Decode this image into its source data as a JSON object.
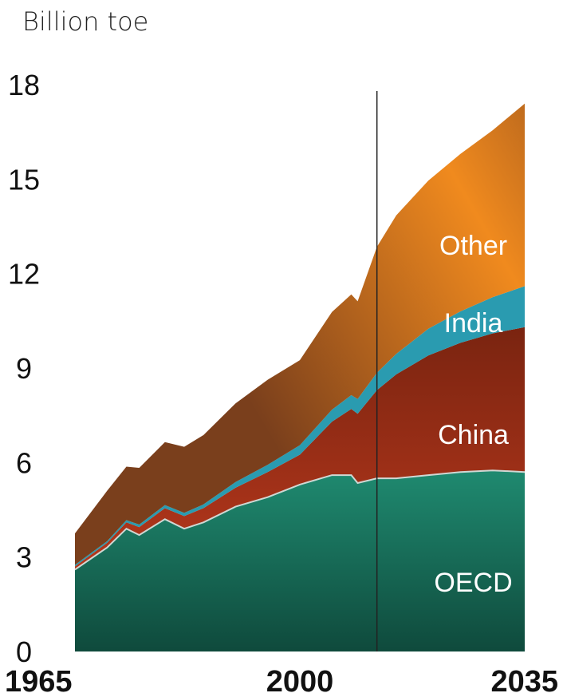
{
  "chart_data": {
    "type": "area",
    "stacked": true,
    "unit_label": "Billion toe",
    "x_ticks": [
      1965,
      2000,
      2035
    ],
    "y_ticks": [
      0,
      3,
      6,
      9,
      12,
      15,
      18
    ],
    "xlim": [
      1965,
      2035
    ],
    "ylim": [
      0,
      18
    ],
    "projection_start": 2012,
    "grid": false,
    "legend": "inline labels",
    "colors": {
      "OECD": "#1f8a70",
      "OECD_dark": "#0f4a3c",
      "China": "#b5371c",
      "China_dark": "#7a2410",
      "India": "#2a9bb0",
      "Other": "#f08a1e",
      "Other_dark": "#7a3f1c",
      "boundary": "#cfd8d4",
      "projection_line": "#222222"
    },
    "x": [
      1965,
      1970,
      1973,
      1975,
      1979,
      1982,
      1985,
      1990,
      1995,
      2000,
      2005,
      2008,
      2009,
      2012,
      2015,
      2020,
      2025,
      2030,
      2035
    ],
    "series": [
      {
        "name": "OECD",
        "values": [
          2.6,
          3.3,
          3.9,
          3.7,
          4.2,
          3.9,
          4.1,
          4.6,
          4.9,
          5.3,
          5.6,
          5.6,
          5.35,
          5.5,
          5.5,
          5.6,
          5.7,
          5.75,
          5.7
        ]
      },
      {
        "name": "China",
        "values": [
          0.1,
          0.15,
          0.2,
          0.25,
          0.35,
          0.4,
          0.45,
          0.6,
          0.8,
          0.95,
          1.7,
          2.1,
          2.2,
          2.8,
          3.3,
          3.8,
          4.1,
          4.35,
          4.6
        ]
      },
      {
        "name": "India",
        "values": [
          0.05,
          0.05,
          0.07,
          0.08,
          0.1,
          0.1,
          0.12,
          0.18,
          0.23,
          0.3,
          0.38,
          0.44,
          0.47,
          0.55,
          0.65,
          0.85,
          1.0,
          1.15,
          1.3
        ]
      },
      {
        "name": "Other",
        "values": [
          1.0,
          1.6,
          1.7,
          1.8,
          2.0,
          2.1,
          2.2,
          2.5,
          2.7,
          2.7,
          3.1,
          3.2,
          3.1,
          4.0,
          4.4,
          4.7,
          5.0,
          5.3,
          5.8
        ]
      }
    ],
    "inline_labels": [
      {
        "series": "Other",
        "text": "Other",
        "x": 2027,
        "y": 12.9
      },
      {
        "series": "India",
        "text": "India",
        "x": 2027,
        "y": 10.45
      },
      {
        "series": "China",
        "text": "China",
        "x": 2027,
        "y": 6.9
      },
      {
        "series": "OECD",
        "text": "OECD",
        "x": 2027,
        "y": 2.2
      }
    ]
  }
}
